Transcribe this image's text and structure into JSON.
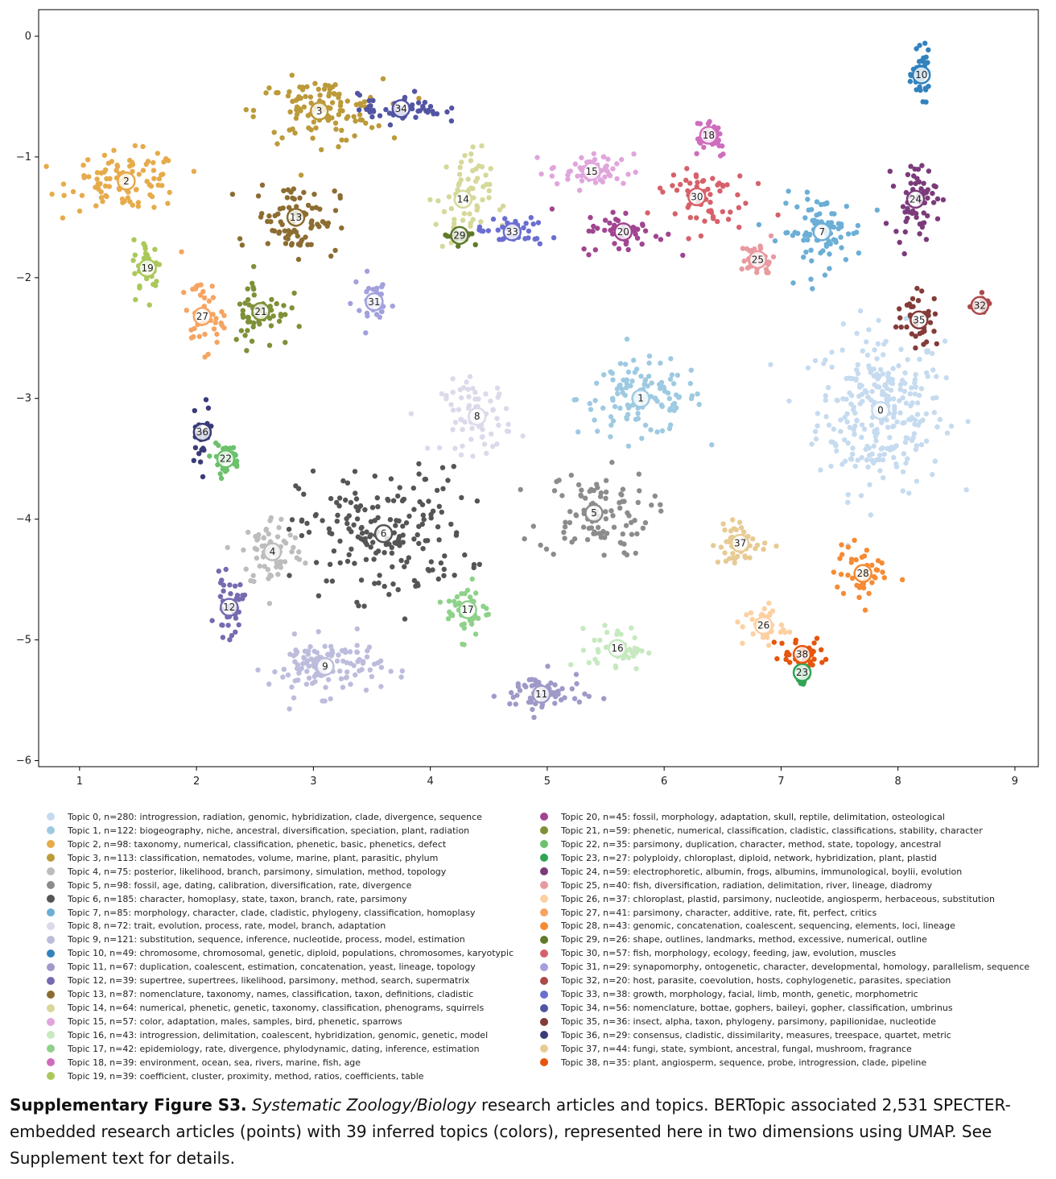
{
  "chart_data": {
    "type": "scatter",
    "title": "",
    "xlabel": "",
    "ylabel": "",
    "xlim": [
      0.65,
      9.2
    ],
    "ylim": [
      -6.05,
      0.22
    ],
    "xticks": [
      1,
      2,
      3,
      4,
      5,
      6,
      7,
      8,
      9
    ],
    "yticks": [
      0,
      -1,
      -2,
      -3,
      -4,
      -5,
      -6
    ],
    "grid": false,
    "legend_position": "below",
    "topics": [
      {
        "id": 0,
        "n": 280,
        "color": "#c6dbef",
        "centroid": [
          7.85,
          -3.1
        ],
        "spread": [
          0.45,
          0.55
        ],
        "label": "Topic 0, n=280: introgression, radiation, genomic, hybridization, clade, divergence, sequence"
      },
      {
        "id": 1,
        "n": 122,
        "color": "#9ecae1",
        "centroid": [
          5.8,
          -3.0
        ],
        "spread": [
          0.45,
          0.25
        ],
        "label": "Topic 1, n=122: biogeography, niche, ancestral, diversification, speciation, plant, radiation"
      },
      {
        "id": 2,
        "n": 98,
        "color": "#e6ab4a",
        "centroid": [
          1.4,
          -1.2
        ],
        "spread": [
          0.4,
          0.2
        ],
        "label": "Topic 2, n=98: taxonomy, numerical, classification, phenetic, basic, phenetics, defect"
      },
      {
        "id": 3,
        "n": 113,
        "color": "#bc9a3a",
        "centroid": [
          3.05,
          -0.62
        ],
        "spread": [
          0.45,
          0.22
        ],
        "label": "Topic 3, n=113: classification, nematodes, volume, marine, plant, parasitic, phylum"
      },
      {
        "id": 4,
        "n": 75,
        "color": "#bdbdbd",
        "centroid": [
          2.65,
          -4.27
        ],
        "spread": [
          0.22,
          0.25
        ],
        "label": "Topic 4, n=75: posterior, likelihood, branch, parsimony, simulation, method, topology"
      },
      {
        "id": 5,
        "n": 98,
        "color": "#8c8c8c",
        "centroid": [
          5.4,
          -3.95
        ],
        "spread": [
          0.4,
          0.3
        ],
        "label": "Topic 5, n=98: fossil, age, dating, calibration, diversification, rate, divergence"
      },
      {
        "id": 6,
        "n": 185,
        "color": "#555555",
        "centroid": [
          3.6,
          -4.12
        ],
        "spread": [
          0.6,
          0.45
        ],
        "label": "Topic 6, n=185: character, homoplasy, state, taxon, branch, rate, parsimony"
      },
      {
        "id": 7,
        "n": 85,
        "color": "#6baed6",
        "centroid": [
          7.35,
          -1.62
        ],
        "spread": [
          0.3,
          0.25
        ],
        "label": "Topic 7, n=85: morphology, character, clade, cladistic, phylogeny, classification, homoplasy"
      },
      {
        "id": 8,
        "n": 72,
        "color": "#dadaeb",
        "centroid": [
          4.4,
          -3.15
        ],
        "spread": [
          0.25,
          0.25
        ],
        "label": "Topic 8, n=72: trait, evolution, process, rate, model, branch, adaptation"
      },
      {
        "id": 9,
        "n": 121,
        "color": "#bcbddc",
        "centroid": [
          3.1,
          -5.22
        ],
        "spread": [
          0.4,
          0.2
        ],
        "label": "Topic 9, n=121: substitution, sequence, inference, nucleotide, process, model, estimation"
      },
      {
        "id": 10,
        "n": 49,
        "color": "#3182bd",
        "centroid": [
          8.2,
          -0.32
        ],
        "spread": [
          0.06,
          0.15
        ],
        "label": "Topic 10, n=49: chromosome, chromosomal, genetic, diploid, populations, chromosomes, karyotypic"
      },
      {
        "id": 11,
        "n": 67,
        "color": "#9e9ac8",
        "centroid": [
          4.95,
          -5.45
        ],
        "spread": [
          0.3,
          0.15
        ],
        "label": "Topic 11, n=67: duplication, coalescent, estimation, concatenation, yeast, lineage, topology"
      },
      {
        "id": 12,
        "n": 39,
        "color": "#756bb1",
        "centroid": [
          2.28,
          -4.73
        ],
        "spread": [
          0.1,
          0.2
        ],
        "label": "Topic 12, n=39: supertree, supertrees, likelihood, parsimony, method, search, supermatrix"
      },
      {
        "id": 13,
        "n": 87,
        "color": "#8c6d31",
        "centroid": [
          2.85,
          -1.5
        ],
        "spread": [
          0.3,
          0.25
        ],
        "label": "Topic 13, n=87: nomenclature, taxonomy, names, classification, taxon, definitions, cladistic"
      },
      {
        "id": 14,
        "n": 64,
        "color": "#d6d89a",
        "centroid": [
          4.28,
          -1.35
        ],
        "spread": [
          0.2,
          0.35
        ],
        "label": "Topic 14, n=64: numerical, phenetic, genetic, taxonomy, classification, phenograms, squirrels"
      },
      {
        "id": 15,
        "n": 57,
        "color": "#e0a6dc",
        "centroid": [
          5.38,
          -1.12
        ],
        "spread": [
          0.3,
          0.12
        ],
        "label": "Topic 15, n=57: color, adaptation, males, samples, bird, phenetic, sparrows"
      },
      {
        "id": 16,
        "n": 43,
        "color": "#c7e9c0",
        "centroid": [
          5.6,
          -5.07
        ],
        "spread": [
          0.2,
          0.15
        ],
        "label": "Topic 16, n=43: introgression, delimitation, coalescent, hybridization, genomic, genetic, model"
      },
      {
        "id": 17,
        "n": 42,
        "color": "#8fd18a",
        "centroid": [
          4.32,
          -4.75
        ],
        "spread": [
          0.15,
          0.2
        ],
        "label": "Topic 17, n=42: epidemiology, rate, divergence, phylodynamic, dating, inference, estimation"
      },
      {
        "id": 18,
        "n": 39,
        "color": "#ce6dbd",
        "centroid": [
          6.38,
          -0.82
        ],
        "spread": [
          0.15,
          0.15
        ],
        "label": "Topic 18, n=39: environment, ocean, sea, rivers, marine, fish, age"
      },
      {
        "id": 19,
        "n": 39,
        "color": "#aac85a",
        "centroid": [
          1.58,
          -1.92
        ],
        "spread": [
          0.1,
          0.2
        ],
        "label": "Topic 19, n=39: coefficient, cluster, proximity, method, ratios, coefficients, table"
      },
      {
        "id": 20,
        "n": 45,
        "color": "#a14591",
        "centroid": [
          5.65,
          -1.62
        ],
        "spread": [
          0.3,
          0.15
        ],
        "label": "Topic 20, n=45: fossil, morphology, adaptation, skull, reptile, delimitation, osteological"
      },
      {
        "id": 21,
        "n": 59,
        "color": "#7d9137",
        "centroid": [
          2.55,
          -2.28
        ],
        "spread": [
          0.2,
          0.25
        ],
        "label": "Topic 21, n=59: phenetic, numerical, classification, cladistic, classifications, stability, character"
      },
      {
        "id": 22,
        "n": 35,
        "color": "#6cc16c",
        "centroid": [
          2.25,
          -3.5
        ],
        "spread": [
          0.1,
          0.1
        ],
        "label": "Topic 22, n=35: parsimony, duplication, character, method, state, topology, ancestral"
      },
      {
        "id": 23,
        "n": 27,
        "color": "#31a354",
        "centroid": [
          7.18,
          -5.27
        ],
        "spread": [
          0.06,
          0.1
        ],
        "label": "Topic 23, n=27: polyploidy, chloroplast, diploid, network, hybridization, plant, plastid"
      },
      {
        "id": 24,
        "n": 59,
        "color": "#7b3b7b",
        "centroid": [
          8.15,
          -1.35
        ],
        "spread": [
          0.15,
          0.25
        ],
        "label": "Topic 24, n=59: electrophoretic, albumin, frogs, albumins, immunological, boylii, evolution"
      },
      {
        "id": 25,
        "n": 40,
        "color": "#e79aa0",
        "centroid": [
          6.8,
          -1.85
        ],
        "spread": [
          0.12,
          0.12
        ],
        "label": "Topic 25, n=40: fish, diversification, radiation, delimitation, river, lineage, diadromy"
      },
      {
        "id": 26,
        "n": 37,
        "color": "#fdd0a2",
        "centroid": [
          6.85,
          -4.88
        ],
        "spread": [
          0.15,
          0.15
        ],
        "label": "Topic 26, n=37: chloroplast, plastid, parsimony, nucleotide, angiosperm, herbaceous, substitution"
      },
      {
        "id": 27,
        "n": 41,
        "color": "#f5a462",
        "centroid": [
          2.05,
          -2.32
        ],
        "spread": [
          0.15,
          0.25
        ],
        "label": "Topic 27, n=41: parsimony, character, additive, rate, fit, perfect, critics"
      },
      {
        "id": 28,
        "n": 43,
        "color": "#f68b33",
        "centroid": [
          7.7,
          -4.45
        ],
        "spread": [
          0.2,
          0.2
        ],
        "label": "Topic 28, n=43: genomic, concatenation, coalescent, sequencing, elements, loci, lineage"
      },
      {
        "id": 29,
        "n": 26,
        "color": "#5e7a2a",
        "centroid": [
          4.25,
          -1.65
        ],
        "spread": [
          0.1,
          0.05
        ],
        "label": "Topic 29, n=26: shape, outlines, landmarks, method, excessive, numerical, outline"
      },
      {
        "id": 30,
        "n": 57,
        "color": "#d6616b",
        "centroid": [
          6.28,
          -1.33
        ],
        "spread": [
          0.35,
          0.25
        ],
        "label": "Topic 30, n=57: fish, morphology, ecology, feeding, jaw, evolution, muscles"
      },
      {
        "id": 31,
        "n": 29,
        "color": "#a3a1dc",
        "centroid": [
          3.52,
          -2.2
        ],
        "spread": [
          0.15,
          0.2
        ],
        "label": "Topic 31, n=29: synapomorphy, ontogenetic, character, developmental, homology, parallelism, sequence"
      },
      {
        "id": 32,
        "n": 20,
        "color": "#ad494a",
        "centroid": [
          8.7,
          -2.23
        ],
        "spread": [
          0.08,
          0.05
        ],
        "label": "Topic 32, n=20: host, parasite, coevolution, hosts, cophylogenetic, parasites, speciation"
      },
      {
        "id": 33,
        "n": 38,
        "color": "#6b6ecf",
        "centroid": [
          4.7,
          -1.62
        ],
        "spread": [
          0.25,
          0.1
        ],
        "label": "Topic 33, n=38: growth, morphology, facial, limb, month, genetic, morphometric"
      },
      {
        "id": 34,
        "n": 56,
        "color": "#5254a3",
        "centroid": [
          3.75,
          -0.6
        ],
        "spread": [
          0.3,
          0.1
        ],
        "label": "Topic 34, n=56: nomenclature, bottae, gophers, baileyi, gopher, classification, umbrinus"
      },
      {
        "id": 35,
        "n": 36,
        "color": "#843c39",
        "centroid": [
          8.18,
          -2.35
        ],
        "spread": [
          0.15,
          0.2
        ],
        "label": "Topic 35, n=36: insect, alpha, taxon, phylogeny, parsimony, papilionidae, nucleotide"
      },
      {
        "id": 36,
        "n": 29,
        "color": "#393b79",
        "centroid": [
          2.05,
          -3.28
        ],
        "spread": [
          0.08,
          0.2
        ],
        "label": "Topic 36, n=29: consensus, cladistic, dissimilarity, measures, treespace, quartet, metric"
      },
      {
        "id": 37,
        "n": 44,
        "color": "#e7cb94",
        "centroid": [
          6.65,
          -4.2
        ],
        "spread": [
          0.2,
          0.15
        ],
        "label": "Topic 37, n=44: fungi, state, symbiont, ancestral, fungal, mushroom, fragrance"
      },
      {
        "id": 38,
        "n": 35,
        "color": "#e6550d",
        "centroid": [
          7.18,
          -5.12
        ],
        "spread": [
          0.2,
          0.12
        ],
        "label": "Topic 38, n=35: plant, angiosperm, sequence, probe, introgression, clade, pipeline"
      }
    ]
  },
  "caption": {
    "title": "Supplementary Figure S3.",
    "journal": "Systematic Zoology/Biology",
    "text_1": " research articles and topics. BERTopic associated 2,531 SPECTER-embedded research articles (points) with 39 inferred topics (colors), represented here in two dimensions using UMAP. See Supplement text for details."
  }
}
